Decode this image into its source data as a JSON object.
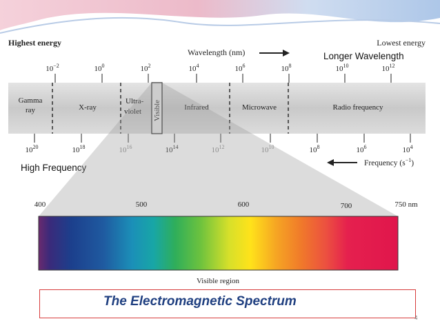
{
  "diagram": {
    "highest_energy": "Highest energy",
    "lowest_energy": "Lowest energy",
    "wavelength_label": "Wavelength (nm)",
    "frequency_label": "Frequency (s",
    "frequency_exp": "−1",
    "frequency_close": ")",
    "longer_wavelength": "Longer Wavelength",
    "high_frequency": "High Frequency",
    "wavelength_ticks": [
      {
        "b": "10",
        "e": "−2"
      },
      {
        "b": "10",
        "e": "0"
      },
      {
        "b": "10",
        "e": "2"
      },
      {
        "b": "10",
        "e": "4"
      },
      {
        "b": "10",
        "e": "6"
      },
      {
        "b": "10",
        "e": "8"
      },
      {
        "b": "10",
        "e": "10"
      },
      {
        "b": "10",
        "e": "12"
      }
    ],
    "frequency_ticks": [
      {
        "b": "10",
        "e": "20"
      },
      {
        "b": "10",
        "e": "18"
      },
      {
        "b": "10",
        "e": "16"
      },
      {
        "b": "10",
        "e": "14"
      },
      {
        "b": "10",
        "e": "12"
      },
      {
        "b": "10",
        "e": "10"
      },
      {
        "b": "10",
        "e": "8"
      },
      {
        "b": "10",
        "e": "6"
      },
      {
        "b": "10",
        "e": "4"
      }
    ],
    "bands": {
      "gamma_1": "Gamma",
      "gamma_2": "ray",
      "xray": "X-ray",
      "uv_1": "Ultra-",
      "uv_2": "violet",
      "visible": "Visible",
      "infrared": "Infrared",
      "microwave": "Microwave",
      "radio": "Radio frequency"
    },
    "visible_ticks": [
      "400",
      "500",
      "600",
      "700",
      "750 nm"
    ],
    "visible_region": "Visible region",
    "caption": "The Electromagnetic Spectrum",
    "slide_number": "4",
    "colors": {
      "band_fill": "#cfcfcf",
      "caption_text": "#1f3f80",
      "caption_border": "#d73a3a",
      "header_pink": "#e6a6b8",
      "header_blue": "#a8c4e6"
    }
  }
}
